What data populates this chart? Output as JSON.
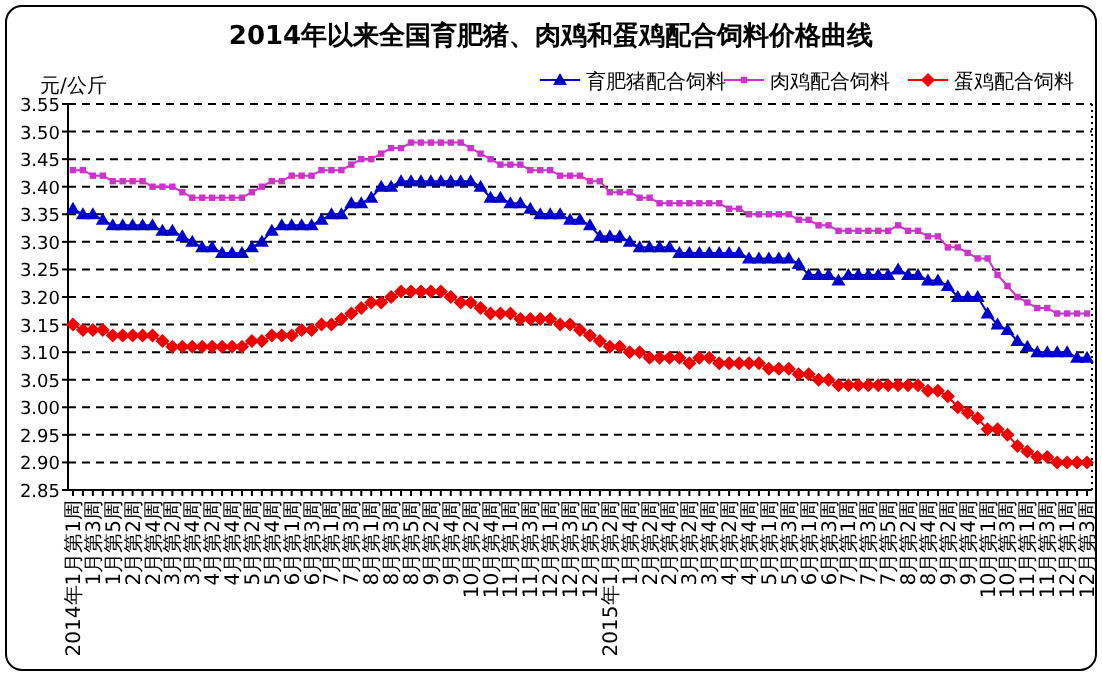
{
  "chart_data": {
    "type": "line",
    "title": "2014年以来全国育肥猪、肉鸡和蛋鸡配合饲料价格曲线",
    "ylabel": "元/公斤",
    "categories": [
      "2014年1月第1周",
      null,
      "1月第3周",
      null,
      "1月第5周",
      null,
      "2月第2周",
      null,
      "2月第4周",
      null,
      "3月第2周",
      null,
      "3月第4周",
      null,
      "4月第2周",
      null,
      "4月第4周",
      null,
      "5月第2周",
      null,
      "5月第4周",
      null,
      "6月第1周",
      null,
      "6月第3周",
      null,
      "7月第1周",
      null,
      "7月第3周",
      null,
      "8月第1周",
      null,
      "8月第3周",
      null,
      "8月第5周",
      null,
      "9月第2周",
      null,
      "9月第4周",
      null,
      "10月第2周",
      null,
      "10月第4周",
      null,
      "11月第1周",
      null,
      "11月第3周",
      null,
      "12月第1周",
      null,
      "12月第3周",
      null,
      "12月第5周",
      null,
      "2015年1月第2周",
      null,
      "1月第4周",
      null,
      "2月第2周",
      null,
      "2月第4周",
      null,
      "3月第2周",
      null,
      "3月第4周",
      null,
      "4月第2周",
      null,
      "4月第4周",
      null,
      "5月第1周",
      null,
      "5月第3周",
      null,
      "6月第1周",
      null,
      "6月第3周",
      null,
      "7月第1周",
      null,
      "7月第3周",
      null,
      "7月第5周",
      null,
      "8月第2周",
      null,
      "8月第4周",
      null,
      "9月第2周",
      null,
      "9月第4周",
      null,
      "10月第1周",
      null,
      "10月第3周",
      null,
      "11月第1周",
      null,
      "11月第3周",
      null,
      "12月第1周",
      null,
      "12月第3周"
    ],
    "series": [
      {
        "name": "育肥猪配合饲料",
        "color": "#0000cc",
        "marker": "triangle",
        "values": [
          3.36,
          3.35,
          3.35,
          3.34,
          3.33,
          3.33,
          3.33,
          3.33,
          3.33,
          3.32,
          3.32,
          3.31,
          3.3,
          3.29,
          3.29,
          3.28,
          3.28,
          3.28,
          3.29,
          3.3,
          3.32,
          3.33,
          3.33,
          3.33,
          3.33,
          3.34,
          3.35,
          3.35,
          3.37,
          3.37,
          3.38,
          3.4,
          3.4,
          3.41,
          3.41,
          3.41,
          3.41,
          3.41,
          3.41,
          3.41,
          3.41,
          3.4,
          3.38,
          3.38,
          3.37,
          3.37,
          3.36,
          3.35,
          3.35,
          3.35,
          3.34,
          3.34,
          3.33,
          3.31,
          3.31,
          3.31,
          3.3,
          3.29,
          3.29,
          3.29,
          3.29,
          3.28,
          3.28,
          3.28,
          3.28,
          3.28,
          3.28,
          3.28,
          3.27,
          3.27,
          3.27,
          3.27,
          3.27,
          3.26,
          3.24,
          3.24,
          3.24,
          3.23,
          3.24,
          3.24,
          3.24,
          3.24,
          3.24,
          3.25,
          3.24,
          3.24,
          3.23,
          3.23,
          3.22,
          3.2,
          3.2,
          3.2,
          3.17,
          3.15,
          3.14,
          3.12,
          3.11,
          3.1,
          3.1,
          3.1,
          3.1,
          3.09,
          3.09
        ]
      },
      {
        "name": "肉鸡配合饲料",
        "color": "#cc33cc",
        "marker": "square",
        "values": [
          3.43,
          3.43,
          3.42,
          3.42,
          3.41,
          3.41,
          3.41,
          3.41,
          3.4,
          3.4,
          3.4,
          3.39,
          3.38,
          3.38,
          3.38,
          3.38,
          3.38,
          3.38,
          3.39,
          3.4,
          3.41,
          3.41,
          3.42,
          3.42,
          3.42,
          3.43,
          3.43,
          3.43,
          3.44,
          3.45,
          3.45,
          3.46,
          3.47,
          3.47,
          3.48,
          3.48,
          3.48,
          3.48,
          3.48,
          3.48,
          3.47,
          3.46,
          3.45,
          3.44,
          3.44,
          3.44,
          3.43,
          3.43,
          3.43,
          3.42,
          3.42,
          3.42,
          3.41,
          3.41,
          3.39,
          3.39,
          3.39,
          3.38,
          3.38,
          3.37,
          3.37,
          3.37,
          3.37,
          3.37,
          3.37,
          3.37,
          3.36,
          3.36,
          3.35,
          3.35,
          3.35,
          3.35,
          3.35,
          3.34,
          3.34,
          3.33,
          3.33,
          3.32,
          3.32,
          3.32,
          3.32,
          3.32,
          3.32,
          3.33,
          3.32,
          3.32,
          3.31,
          3.31,
          3.29,
          3.29,
          3.28,
          3.27,
          3.27,
          3.24,
          3.22,
          3.2,
          3.19,
          3.18,
          3.18,
          3.17,
          3.17,
          3.17,
          3.17
        ]
      },
      {
        "name": "蛋鸡配合饲料",
        "color": "#ee0000",
        "marker": "diamond",
        "values": [
          3.15,
          3.14,
          3.14,
          3.14,
          3.13,
          3.13,
          3.13,
          3.13,
          3.13,
          3.12,
          3.11,
          3.11,
          3.11,
          3.11,
          3.11,
          3.11,
          3.11,
          3.11,
          3.12,
          3.12,
          3.13,
          3.13,
          3.13,
          3.14,
          3.14,
          3.15,
          3.15,
          3.16,
          3.17,
          3.18,
          3.19,
          3.19,
          3.2,
          3.21,
          3.21,
          3.21,
          3.21,
          3.21,
          3.2,
          3.19,
          3.19,
          3.18,
          3.17,
          3.17,
          3.17,
          3.16,
          3.16,
          3.16,
          3.16,
          3.15,
          3.15,
          3.14,
          3.13,
          3.12,
          3.11,
          3.11,
          3.1,
          3.1,
          3.09,
          3.09,
          3.09,
          3.09,
          3.08,
          3.09,
          3.09,
          3.08,
          3.08,
          3.08,
          3.08,
          3.08,
          3.07,
          3.07,
          3.07,
          3.06,
          3.06,
          3.05,
          3.05,
          3.04,
          3.04,
          3.04,
          3.04,
          3.04,
          3.04,
          3.04,
          3.04,
          3.04,
          3.03,
          3.03,
          3.02,
          3.0,
          2.99,
          2.98,
          2.96,
          2.96,
          2.95,
          2.93,
          2.92,
          2.91,
          2.91,
          2.9,
          2.9,
          2.9,
          2.9
        ]
      }
    ],
    "ylim": [
      2.85,
      3.55
    ],
    "yticks": [
      {
        "value": 2.85,
        "label": "2.85"
      },
      {
        "value": 2.9,
        "label": "2.90"
      },
      {
        "value": 2.95,
        "label": "2.95"
      },
      {
        "value": 3.0,
        "label": "3.00"
      },
      {
        "value": 3.05,
        "label": "3.05"
      },
      {
        "value": 3.1,
        "label": "3.10"
      },
      {
        "value": 3.15,
        "label": "3.15"
      },
      {
        "value": 3.2,
        "label": "3.20"
      },
      {
        "value": 3.25,
        "label": "3.25"
      },
      {
        "value": 3.3,
        "label": "3.30"
      },
      {
        "value": 3.35,
        "label": "3.35"
      },
      {
        "value": 3.4,
        "label": "3.40"
      },
      {
        "value": 3.45,
        "label": "3.45"
      },
      {
        "value": 3.5,
        "label": "3.50"
      },
      {
        "value": 3.55,
        "label": "3.55"
      }
    ],
    "grid": "y",
    "legend": "top right",
    "line_style": "solid"
  }
}
